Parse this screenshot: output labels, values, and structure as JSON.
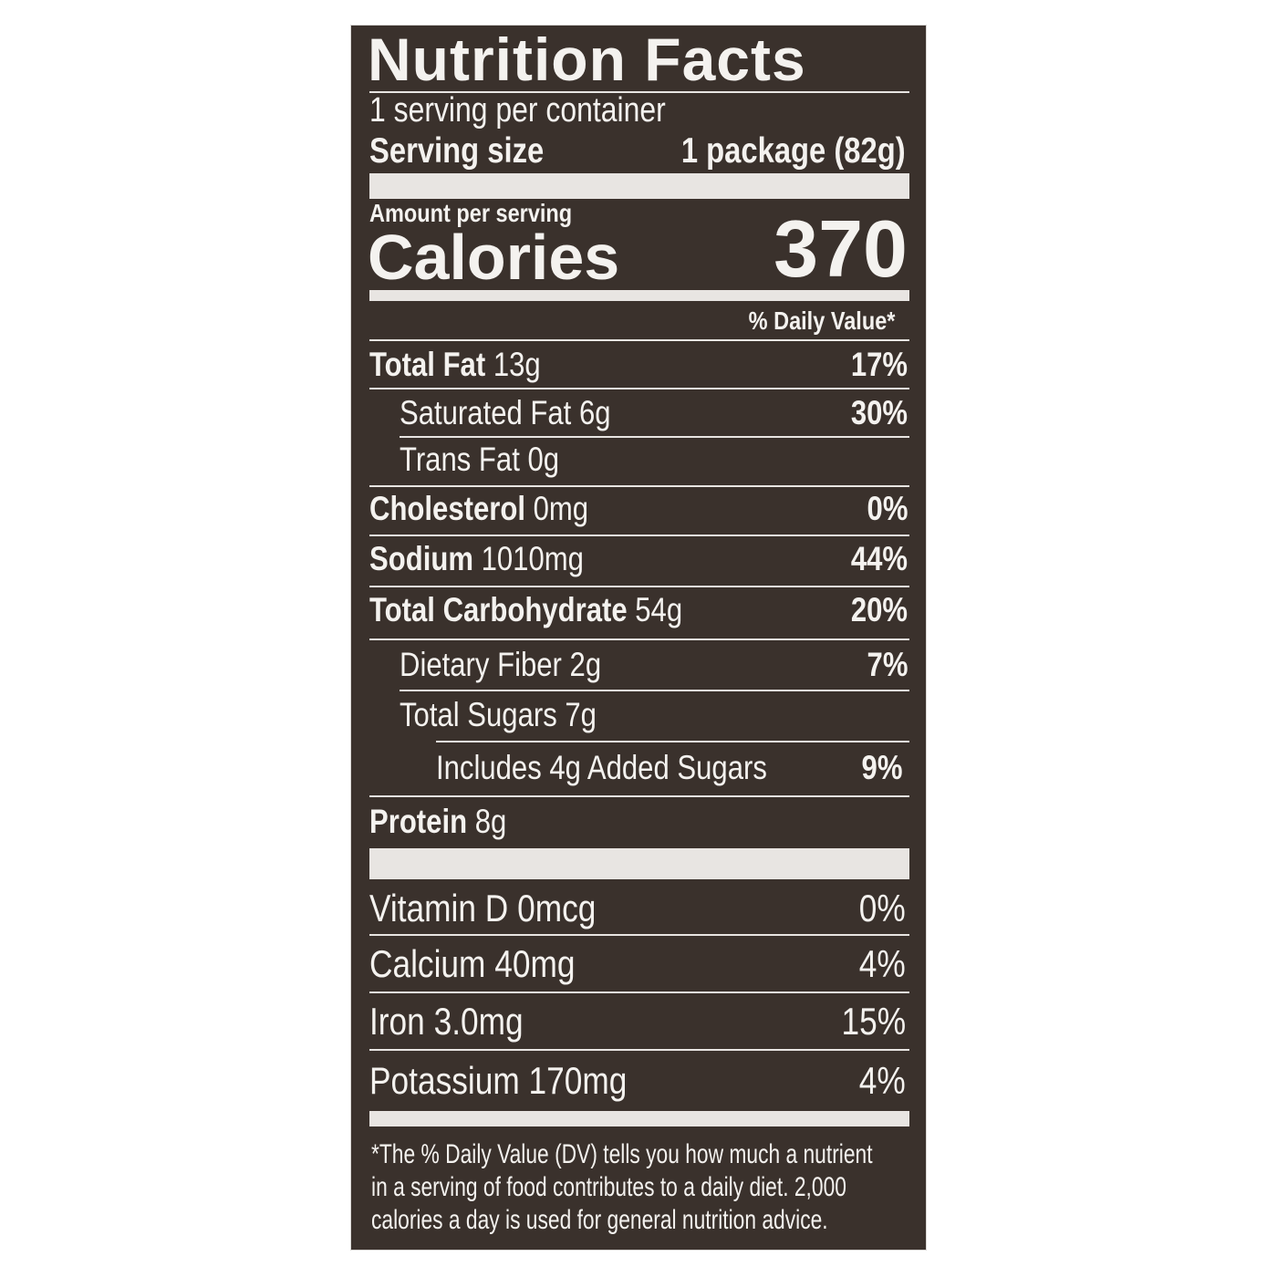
{
  "title": "Nutrition Facts",
  "servings_per_container": "1 serving per container",
  "serving_size_label": "Serving size",
  "serving_size_value": "1 package (82g)",
  "amount_per_serving": "Amount per serving",
  "calories_label": "Calories",
  "calories_value": "370",
  "daily_value_header": "% Daily Value*",
  "nutrients": [
    {
      "name": "Total Fat",
      "amount": "13g",
      "dv": "17%"
    },
    {
      "name": "Saturated Fat",
      "amount": "6g",
      "dv": "30%"
    },
    {
      "name": "Trans Fat",
      "amount": "0g",
      "dv": ""
    },
    {
      "name": "Cholesterol",
      "amount": "0mg",
      "dv": "0%"
    },
    {
      "name": "Sodium",
      "amount": "1010mg",
      "dv": "44%"
    },
    {
      "name": "Total Carbohydrate",
      "amount": "54g",
      "dv": "20%"
    },
    {
      "name": "Dietary Fiber",
      "amount": "2g",
      "dv": "7%"
    },
    {
      "name": "Total Sugars",
      "amount": "7g",
      "dv": ""
    },
    {
      "name": "Includes 4g Added Sugars",
      "amount": "",
      "dv": "9%"
    },
    {
      "name": "Protein",
      "amount": "8g",
      "dv": ""
    }
  ],
  "vitamins": [
    {
      "text": "Vitamin D 0mcg",
      "dv": "0%"
    },
    {
      "text": "Calcium 40mg",
      "dv": "4%"
    },
    {
      "text": "Iron 3.0mg",
      "dv": "15%"
    },
    {
      "text": "Potassium 170mg",
      "dv": "4%"
    }
  ],
  "footnote": [
    "*The % Daily Value (DV) tells you how much a nutrient",
    "in a serving of food contributes to a daily diet. 2,000",
    "calories a day is used for general nutrition advice."
  ],
  "colors": {
    "background": "#3a312c",
    "text": "#f4f2ef"
  }
}
